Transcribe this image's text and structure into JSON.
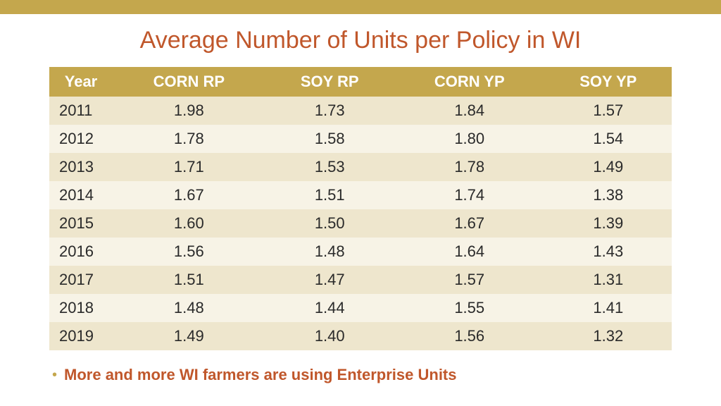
{
  "colors": {
    "accent_bar": "#c4a74d",
    "title_color": "#c0572b",
    "header_bg": "#c4a74d",
    "header_text": "#ffffff",
    "row_odd_bg": "#eee6cd",
    "row_even_bg": "#f7f3e6",
    "cell_text": "#2a2a2a",
    "bullet_dot": "#c4a74d",
    "bullet_text": "#c0572b"
  },
  "title": "Average Number of Units per Policy in WI",
  "table": {
    "columns": [
      "Year",
      "CORN RP",
      "SOY RP",
      "CORN YP",
      "SOY YP"
    ],
    "rows": [
      [
        "2011",
        "1.98",
        "1.73",
        "1.84",
        "1.57"
      ],
      [
        "2012",
        "1.78",
        "1.58",
        "1.80",
        "1.54"
      ],
      [
        "2013",
        "1.71",
        "1.53",
        "1.78",
        "1.49"
      ],
      [
        "2014",
        "1.67",
        "1.51",
        "1.74",
        "1.38"
      ],
      [
        "2015",
        "1.60",
        "1.50",
        "1.67",
        "1.39"
      ],
      [
        "2016",
        "1.56",
        "1.48",
        "1.64",
        "1.43"
      ],
      [
        "2017",
        "1.51",
        "1.47",
        "1.57",
        "1.31"
      ],
      [
        "2018",
        "1.48",
        "1.44",
        "1.55",
        "1.41"
      ],
      [
        "2019",
        "1.49",
        "1.40",
        "1.56",
        "1.32"
      ]
    ]
  },
  "bullet": {
    "symbol": "•",
    "text": "More and more WI farmers are using Enterprise Units"
  }
}
